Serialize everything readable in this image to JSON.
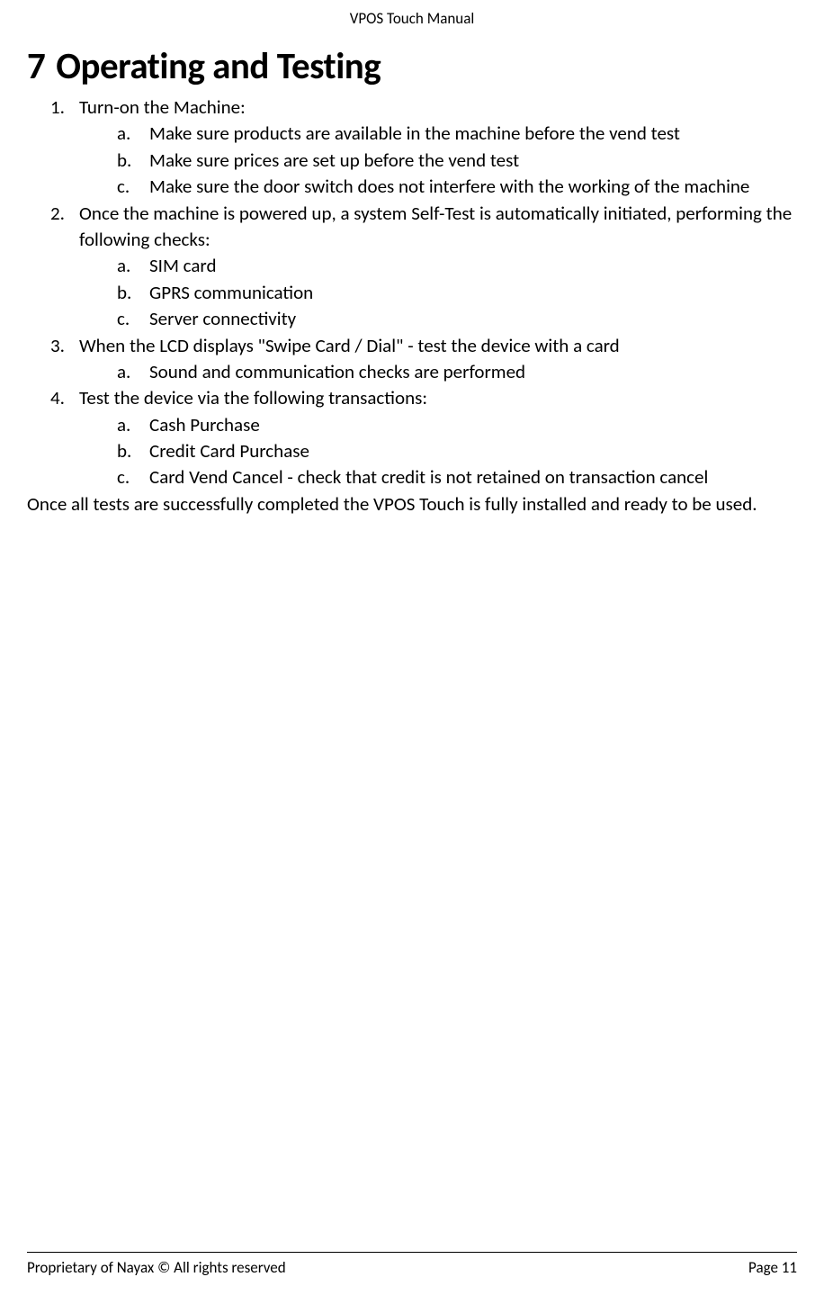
{
  "header": {
    "title": "VPOS Touch Manual"
  },
  "heading": {
    "number": "7",
    "title": "Operating and Testing"
  },
  "items": [
    {
      "marker": "1.",
      "text": "Turn-on the Machine:",
      "sub": [
        {
          "marker": "a.",
          "text": "Make sure products are available in the machine before the vend test"
        },
        {
          "marker": "b.",
          "text": "Make sure prices are set up before the vend test"
        },
        {
          "marker": "c.",
          "text": "Make sure the door switch does not interfere with the working of the machine"
        }
      ]
    },
    {
      "marker": "2.",
      "text": "Once the machine is powered up, a system Self-Test is automatically initiated, performing the following checks:",
      "sub": [
        {
          "marker": "a.",
          "text": "SIM card"
        },
        {
          "marker": "b.",
          "text": "GPRS communication"
        },
        {
          "marker": "c.",
          "text": "Server connectivity"
        }
      ]
    },
    {
      "marker": "3.",
      "text": "When the LCD displays \"Swipe Card / Dial\" - test the device with a card",
      "sub": [
        {
          "marker": "a.",
          "text": "Sound and communication checks are performed"
        }
      ]
    },
    {
      "marker": "4.",
      "text": "Test the device via the following transactions:",
      "sub": [
        {
          "marker": "a.",
          "text": "Cash Purchase"
        },
        {
          "marker": "b.",
          "text": "Credit Card Purchase"
        },
        {
          "marker": "c.",
          "text": "Card Vend Cancel - check that credit is not retained on transaction cancel"
        }
      ]
    }
  ],
  "closing": "Once all tests are successfully completed the VPOS Touch is fully installed and ready to be used.",
  "footer": {
    "left": "Proprietary of Nayax © All rights reserved",
    "right": "Page 11"
  }
}
